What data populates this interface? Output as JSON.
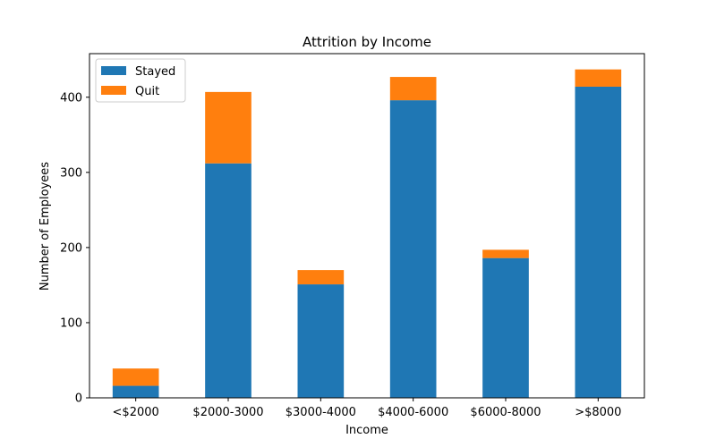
{
  "chart_data": {
    "type": "bar",
    "stacked": true,
    "title": "Attrition by Income",
    "xlabel": "Income",
    "ylabel": "Number of Employees",
    "categories": [
      "<$2000",
      "$2000-3000",
      "$3000-4000",
      "$4000-6000",
      "$6000-8000",
      ">$8000"
    ],
    "series": [
      {
        "name": "Stayed",
        "color": "#1f77b4",
        "values": [
          16,
          312,
          151,
          396,
          186,
          414
        ]
      },
      {
        "name": "Quit",
        "color": "#ff7f0e",
        "values": [
          23,
          95,
          19,
          31,
          11,
          23
        ]
      }
    ],
    "ylim": [
      0,
      458
    ],
    "yticks": [
      0,
      100,
      200,
      300,
      400
    ],
    "grid": false,
    "legend": "top-left"
  }
}
